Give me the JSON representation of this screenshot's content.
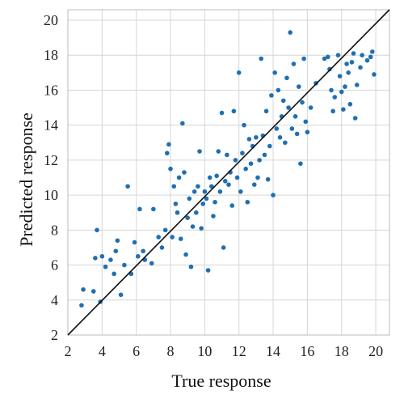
{
  "chart_data": {
    "type": "scatter",
    "title": "",
    "xlabel": "True response",
    "ylabel": "Predicted response",
    "xlim": [
      2,
      20.8
    ],
    "ylim": [
      2,
      20.6
    ],
    "xticks": [
      2,
      4,
      6,
      8,
      10,
      12,
      14,
      16,
      18,
      20
    ],
    "yticks": [
      2,
      4,
      6,
      8,
      10,
      12,
      14,
      16,
      18,
      20
    ],
    "grid": true,
    "legend": "none",
    "point_color": "#1f6fb2",
    "reference_line": {
      "from": [
        2,
        2
      ],
      "to": [
        20.8,
        20.6
      ],
      "color": "#111111"
    },
    "points": [
      [
        2.8,
        3.7
      ],
      [
        2.9,
        4.6
      ],
      [
        3.5,
        4.5
      ],
      [
        3.6,
        6.4
      ],
      [
        3.7,
        8.0
      ],
      [
        3.9,
        3.9
      ],
      [
        4.0,
        6.5
      ],
      [
        4.2,
        5.9
      ],
      [
        4.5,
        6.3
      ],
      [
        4.7,
        5.5
      ],
      [
        4.8,
        6.8
      ],
      [
        4.9,
        7.4
      ],
      [
        5.1,
        4.3
      ],
      [
        5.3,
        6.0
      ],
      [
        5.5,
        10.5
      ],
      [
        5.7,
        5.5
      ],
      [
        5.9,
        7.3
      ],
      [
        6.1,
        6.5
      ],
      [
        6.2,
        9.2
      ],
      [
        6.4,
        6.8
      ],
      [
        6.5,
        6.3
      ],
      [
        6.9,
        6.1
      ],
      [
        7.0,
        9.2
      ],
      [
        7.3,
        7.6
      ],
      [
        7.5,
        7.0
      ],
      [
        7.7,
        8.0
      ],
      [
        7.8,
        12.4
      ],
      [
        7.9,
        12.9
      ],
      [
        8.0,
        11.5
      ],
      [
        8.1,
        7.6
      ],
      [
        8.2,
        10.5
      ],
      [
        8.3,
        9.5
      ],
      [
        8.4,
        9.0
      ],
      [
        8.5,
        11.0
      ],
      [
        8.6,
        7.5
      ],
      [
        8.7,
        14.1
      ],
      [
        8.8,
        11.3
      ],
      [
        8.9,
        6.6
      ],
      [
        9.0,
        8.7
      ],
      [
        9.1,
        9.8
      ],
      [
        9.2,
        5.9
      ],
      [
        9.3,
        8.2
      ],
      [
        9.4,
        10.2
      ],
      [
        9.5,
        9.0
      ],
      [
        9.6,
        10.5
      ],
      [
        9.7,
        12.5
      ],
      [
        9.8,
        8.1
      ],
      [
        9.9,
        9.5
      ],
      [
        10.0,
        10.2
      ],
      [
        10.1,
        9.8
      ],
      [
        10.2,
        5.7
      ],
      [
        10.3,
        11.0
      ],
      [
        10.4,
        10.5
      ],
      [
        10.5,
        8.8
      ],
      [
        10.6,
        9.6
      ],
      [
        10.7,
        11.1
      ],
      [
        10.8,
        12.5
      ],
      [
        10.9,
        10.2
      ],
      [
        11.0,
        14.7
      ],
      [
        11.1,
        7.0
      ],
      [
        11.2,
        10.8
      ],
      [
        11.3,
        12.3
      ],
      [
        11.4,
        10.6
      ],
      [
        11.5,
        11.3
      ],
      [
        11.6,
        9.4
      ],
      [
        11.7,
        14.8
      ],
      [
        11.8,
        12.0
      ],
      [
        11.9,
        11.0
      ],
      [
        12.0,
        17.0
      ],
      [
        12.1,
        10.2
      ],
      [
        12.2,
        12.4
      ],
      [
        12.3,
        14.0
      ],
      [
        12.4,
        11.5
      ],
      [
        12.5,
        9.6
      ],
      [
        12.6,
        13.2
      ],
      [
        12.7,
        11.8
      ],
      [
        12.8,
        12.8
      ],
      [
        12.9,
        10.6
      ],
      [
        13.0,
        13.3
      ],
      [
        13.1,
        11.0
      ],
      [
        13.2,
        12.0
      ],
      [
        13.3,
        17.8
      ],
      [
        13.4,
        13.4
      ],
      [
        13.5,
        12.3
      ],
      [
        13.6,
        14.8
      ],
      [
        13.7,
        10.9
      ],
      [
        13.8,
        12.8
      ],
      [
        13.9,
        15.7
      ],
      [
        14.0,
        10.0
      ],
      [
        14.1,
        17.0
      ],
      [
        14.2,
        13.8
      ],
      [
        14.3,
        16.0
      ],
      [
        14.4,
        13.3
      ],
      [
        14.5,
        14.5
      ],
      [
        14.6,
        15.4
      ],
      [
        14.7,
        13.0
      ],
      [
        14.8,
        16.7
      ],
      [
        14.9,
        15.0
      ],
      [
        15.0,
        19.3
      ],
      [
        15.1,
        13.8
      ],
      [
        15.2,
        17.5
      ],
      [
        15.3,
        14.5
      ],
      [
        15.4,
        13.5
      ],
      [
        15.5,
        16.2
      ],
      [
        15.6,
        11.8
      ],
      [
        15.7,
        15.3
      ],
      [
        15.8,
        17.8
      ],
      [
        15.9,
        14.2
      ],
      [
        16.0,
        13.6
      ],
      [
        16.2,
        15.0
      ],
      [
        16.5,
        16.4
      ],
      [
        17.0,
        17.8
      ],
      [
        17.2,
        17.9
      ],
      [
        17.3,
        17.2
      ],
      [
        17.4,
        16.0
      ],
      [
        17.5,
        14.8
      ],
      [
        17.6,
        15.6
      ],
      [
        17.8,
        18.0
      ],
      [
        17.9,
        16.8
      ],
      [
        18.0,
        15.9
      ],
      [
        18.1,
        14.9
      ],
      [
        18.2,
        16.2
      ],
      [
        18.3,
        17.5
      ],
      [
        18.4,
        17.0
      ],
      [
        18.5,
        15.2
      ],
      [
        18.6,
        17.6
      ],
      [
        18.7,
        18.1
      ],
      [
        18.8,
        14.4
      ],
      [
        18.9,
        16.3
      ],
      [
        19.1,
        17.3
      ],
      [
        19.2,
        18.0
      ],
      [
        19.5,
        17.7
      ],
      [
        19.7,
        17.9
      ],
      [
        19.8,
        18.2
      ],
      [
        19.9,
        16.9
      ]
    ]
  }
}
